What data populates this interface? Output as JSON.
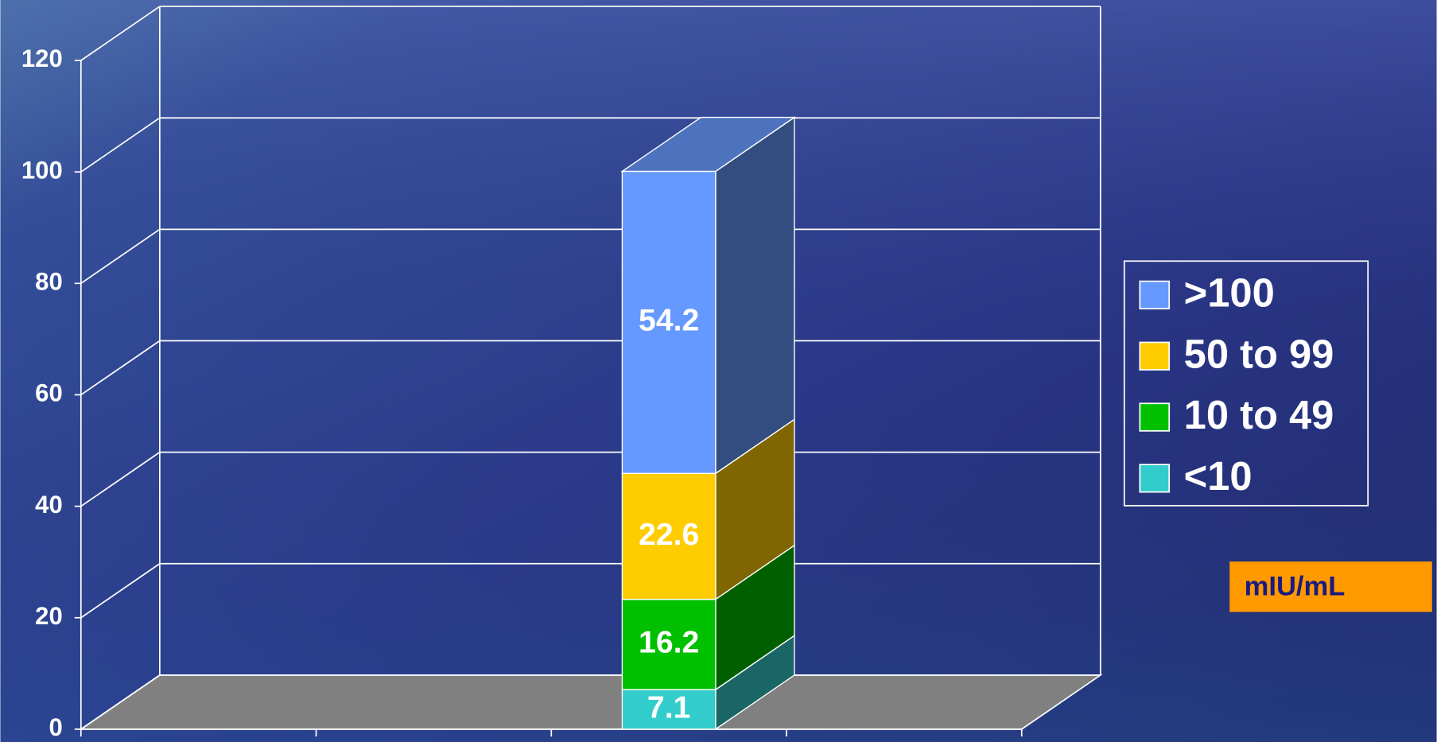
{
  "chart_data": {
    "type": "bar",
    "stacked": true,
    "categories": [
      null,
      null,
      null,
      null
    ],
    "series": [
      {
        "name": "<10",
        "color": "#33cccc",
        "values": [
          null,
          null,
          7.1,
          null
        ]
      },
      {
        "name": "10 to 49",
        "color": "#00c000",
        "values": [
          null,
          null,
          16.2,
          null
        ]
      },
      {
        "name": "50 to 99",
        "color": "#ffcc00",
        "values": [
          null,
          null,
          22.6,
          null
        ]
      },
      {
        "name": ">100",
        "color": "#6699ff",
        "values": [
          null,
          null,
          54.2,
          null
        ]
      }
    ],
    "ylim": [
      0,
      120
    ],
    "yticks": [
      0,
      20,
      40,
      60,
      80,
      100,
      120
    ],
    "grid": true,
    "legend": "right",
    "annotation": "mIU/mL"
  }
}
